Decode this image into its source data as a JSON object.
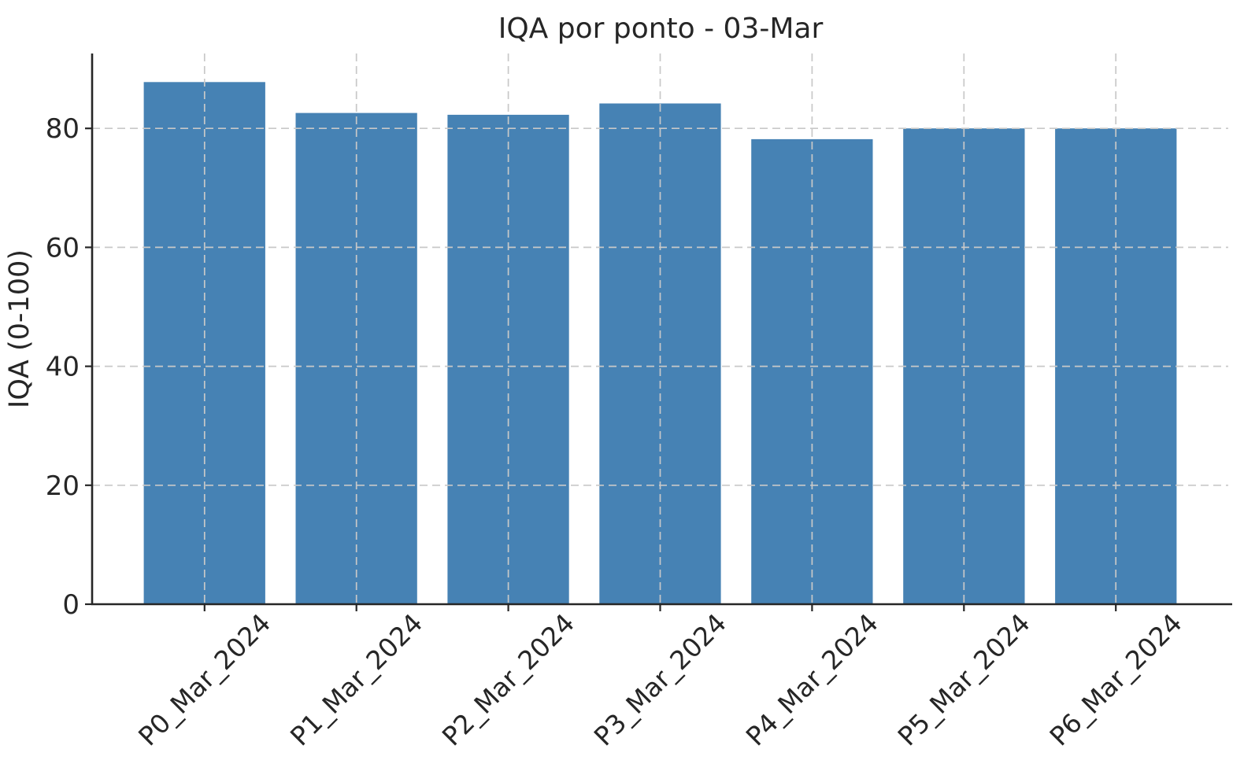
{
  "chart_data": {
    "type": "bar",
    "title": "IQA por ponto - 03-Mar",
    "xlabel": "",
    "ylabel": "IQA (0-100)",
    "categories": [
      "P0_Mar_2024",
      "P1_Mar_2024",
      "P2_Mar_2024",
      "P3_Mar_2024",
      "P4_Mar_2024",
      "P5_Mar_2024",
      "P6_Mar_2024"
    ],
    "values": [
      87.8,
      82.6,
      82.3,
      84.2,
      78.2,
      80.0,
      80.0
    ],
    "yticks": [
      0,
      20,
      40,
      60,
      80
    ],
    "ylim": [
      0,
      92.6
    ],
    "xlim": [
      -0.74,
      6.74
    ],
    "bar_width": 0.8,
    "x_tick_rotation": 45,
    "grid": "dashed, both axes, drawn above bars",
    "legend_position": "none",
    "bar_color": "#4682b4",
    "grid_color": "#c8c8c8",
    "axis_color": "#262626",
    "text_color": "#262626",
    "title_color": "#333333",
    "background_color": "#ffffff"
  }
}
